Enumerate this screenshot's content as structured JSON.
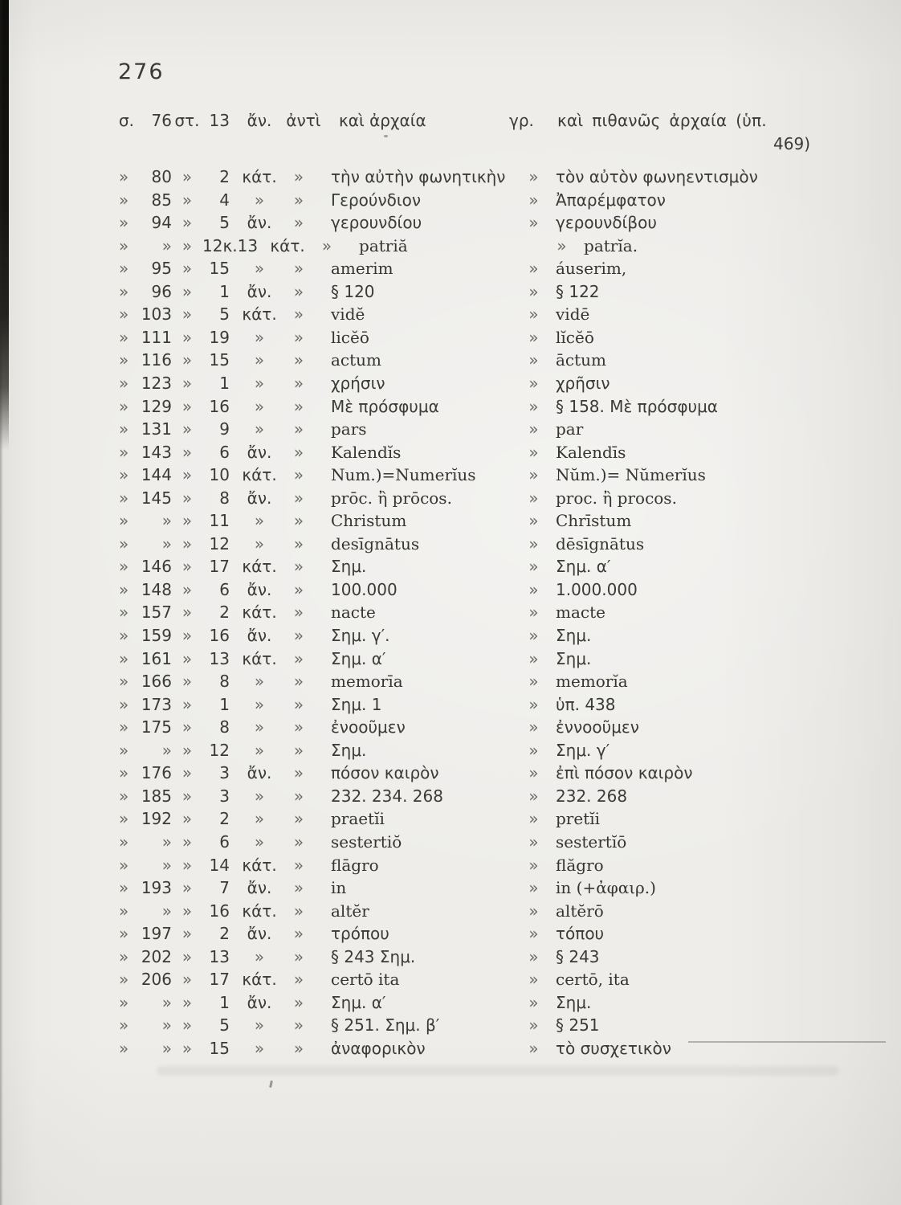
{
  "colors": {
    "paper": "#eeedea",
    "ink": "#3b3b35",
    "marker": "#6b6b63",
    "scanner_bar": "#0e0e0d"
  },
  "page_number": "276",
  "marker": "»",
  "header": {
    "sigma": "σ.",
    "page": "76",
    "st": "στ.",
    "line": "13",
    "pos": "ἄν.",
    "anti": "ἀντὶ",
    "old": "καὶ ἀρχαία",
    "gr": "γρ.",
    "new": "καὶ πιθανῶς ἀρχαία (ὑπ.",
    "new_cont": "469)"
  },
  "rows": [
    {
      "page": "80",
      "line": "2",
      "pos": "κάτ.",
      "old": "τὴν αὐτὴν φωνητικὴν",
      "new": "τὸν αὐτὸν φωνηεντισμὸν",
      "latin": false
    },
    {
      "page": "85",
      "line": "4",
      "pos": "»",
      "old": "Γερούνδιον",
      "new": "Ἀπαρέμφατον",
      "latin": false
    },
    {
      "page": "94",
      "line": "5",
      "pos": "ἄν.",
      "old": "γερουνδίου",
      "new": "γερουνδίβου",
      "latin": false
    },
    {
      "page": "»",
      "line": "12κ.13",
      "pos": "κάτ.",
      "old": "patriă",
      "new": "patrĭa.",
      "latin": true
    },
    {
      "page": "95",
      "line": "15",
      "pos": "»",
      "old": "amerim",
      "new": "áuserim,",
      "latin": true
    },
    {
      "page": "96",
      "line": "1",
      "pos": "ἄν.",
      "old": "§ 120",
      "new": "§ 122",
      "latin": false
    },
    {
      "page": "103",
      "line": "5",
      "pos": "κάτ.",
      "old": "vidĕ",
      "new": "vidē",
      "latin": true
    },
    {
      "page": "111",
      "line": "19",
      "pos": "»",
      "old": "licĕō",
      "new": "lĭcĕō",
      "latin": true
    },
    {
      "page": "116",
      "line": "15",
      "pos": "»",
      "old": "actum",
      "new": "āctum",
      "latin": true
    },
    {
      "page": "123",
      "line": "1",
      "pos": "»",
      "old": "χρήσιν",
      "new": "χρῆσιν",
      "latin": false
    },
    {
      "page": "129",
      "line": "16",
      "pos": "»",
      "old": "Μὲ πρόσφυμα",
      "new": "§ 158. Μὲ πρόσφυμα",
      "latin": false
    },
    {
      "page": "131",
      "line": "9",
      "pos": "»",
      "old": "pars",
      "new": "par",
      "latin": true
    },
    {
      "page": "143",
      "line": "6",
      "pos": "ἄν.",
      "old": "Kalendĭs",
      "new": "Kalendīs",
      "latin": true
    },
    {
      "page": "144",
      "line": "10",
      "pos": "κάτ.",
      "old": "Num.)=Numerĭus",
      "new": "Nŭm.)= Nŭmerĭus",
      "latin": true
    },
    {
      "page": "145",
      "line": "8",
      "pos": "ἄν.",
      "old": "prōc. ἢ prōcos.",
      "new": "proc. ἢ procos.",
      "latin": true
    },
    {
      "page": "»",
      "line": "11",
      "pos": "»",
      "old": "Christum",
      "new": "Chrīstum",
      "latin": true
    },
    {
      "page": "»",
      "line": "12",
      "pos": "»",
      "old": "desīgnātus",
      "new": "dēsīgnātus",
      "latin": true
    },
    {
      "page": "146",
      "line": "17",
      "pos": "κάτ.",
      "old": "Σημ.",
      "new": "Σημ. α′",
      "latin": false
    },
    {
      "page": "148",
      "line": "6",
      "pos": "ἄν.",
      "old": "100.000",
      "new": "1.000.000",
      "latin": false
    },
    {
      "page": "157",
      "line": "2",
      "pos": "κάτ.",
      "old": "nacte",
      "new": "macte",
      "latin": true
    },
    {
      "page": "159",
      "line": "16",
      "pos": "ἄν.",
      "old": "Σημ. γ′.",
      "new": "Σημ.",
      "latin": false
    },
    {
      "page": "161",
      "line": "13",
      "pos": "κάτ.",
      "old": "Σημ. α′",
      "new": "Σημ.",
      "latin": false
    },
    {
      "page": "166",
      "line": "8",
      "pos": "»",
      "old": "memorīa",
      "new": "memorĭa",
      "latin": true
    },
    {
      "page": "173",
      "line": "1",
      "pos": "»",
      "old": "Σημ. 1",
      "new": "ὑπ. 438",
      "latin": false
    },
    {
      "page": "175",
      "line": "8",
      "pos": "»",
      "old": "ἐνοοῦμεν",
      "new": "ἐννοοῦμεν",
      "latin": false
    },
    {
      "page": "»",
      "line": "12",
      "pos": "»",
      "old": "Σημ.",
      "new": "Σημ. γ′",
      "latin": false
    },
    {
      "page": "176",
      "line": "3",
      "pos": "ἄν.",
      "old": "πόσον καιρὸν",
      "new": "ἐπὶ πόσον καιρὸν",
      "latin": false
    },
    {
      "page": "185",
      "line": "3",
      "pos": "»",
      "old": "232. 234. 268",
      "new": "232. 268",
      "latin": false
    },
    {
      "page": "192",
      "line": "2",
      "pos": "»",
      "old": "praetĭi",
      "new": "pretĭi",
      "latin": true
    },
    {
      "page": "»",
      "line": "6",
      "pos": "»",
      "old": "sestertiŏ",
      "new": "sestertĭō",
      "latin": true
    },
    {
      "page": "»",
      "line": "14",
      "pos": "κάτ.",
      "old": "flāgro",
      "new": "flăgro",
      "latin": true
    },
    {
      "page": "193",
      "line": "7",
      "pos": "ἄν.",
      "old": "in",
      "new": "in (+ἀφαιρ.)",
      "latin": true
    },
    {
      "page": "»",
      "line": "16",
      "pos": "κάτ.",
      "old": "altĕr",
      "new": "altĕrō",
      "latin": true
    },
    {
      "page": "197",
      "line": "2",
      "pos": "ἄν.",
      "old": "τρόπου",
      "new": "τόπου",
      "latin": false
    },
    {
      "page": "202",
      "line": "13",
      "pos": "»",
      "old": "§ 243 Σημ.",
      "new": "§ 243",
      "latin": false
    },
    {
      "page": "206",
      "line": "17",
      "pos": "κάτ.",
      "old": "certō ita",
      "new": "certō, ita",
      "latin": true
    },
    {
      "page": "»",
      "line": "1",
      "pos": "ἄν.",
      "old": "Σημ. α′",
      "new": "Σημ.",
      "latin": false
    },
    {
      "page": "»",
      "line": "5",
      "pos": "»",
      "old": "§ 251. Σημ. β′",
      "new": "§ 251",
      "latin": false
    },
    {
      "page": "»",
      "line": "15",
      "pos": "»",
      "old": "ἀναφορικὸν",
      "new": "τὸ συσχετικὸν",
      "latin": false
    }
  ]
}
